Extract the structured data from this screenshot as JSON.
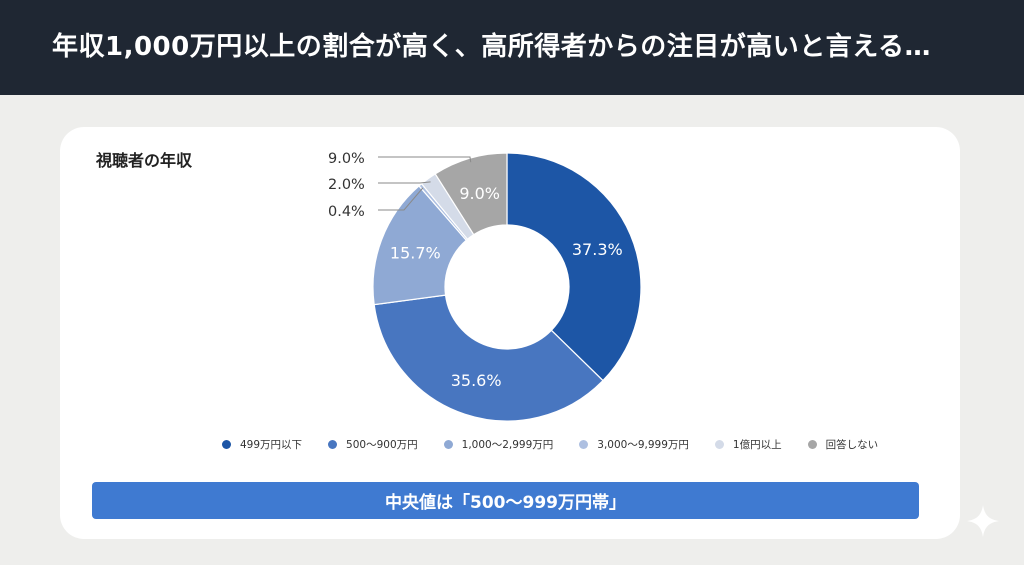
{
  "header": {
    "title": "年収1,000万円以上の割合が高く、高所得者からの注目が高いと言える…"
  },
  "chart_data": {
    "type": "pie",
    "title": "視聴者の年収",
    "donut": true,
    "categories": [
      "499万円以下",
      "500～900万円",
      "1,000～2,999万円",
      "3,000～9,999万円",
      "1億円以上",
      "回答しない"
    ],
    "values": [
      37.3,
      35.6,
      15.7,
      0.4,
      2.0,
      9.0
    ],
    "value_labels": [
      "37.3%",
      "35.6%",
      "15.7%",
      "0.4%",
      "2.0%",
      "9.0%"
    ],
    "colors": [
      "#1d56a6",
      "#4876c0",
      "#8fa9d4",
      "#aec0e1",
      "#d4dbe8",
      "#a6a6a6"
    ],
    "legend_position": "bottom"
  },
  "banner": {
    "text": "中央値は「500～999万円帯」"
  },
  "icons": {
    "corner": "sparkle-icon"
  }
}
